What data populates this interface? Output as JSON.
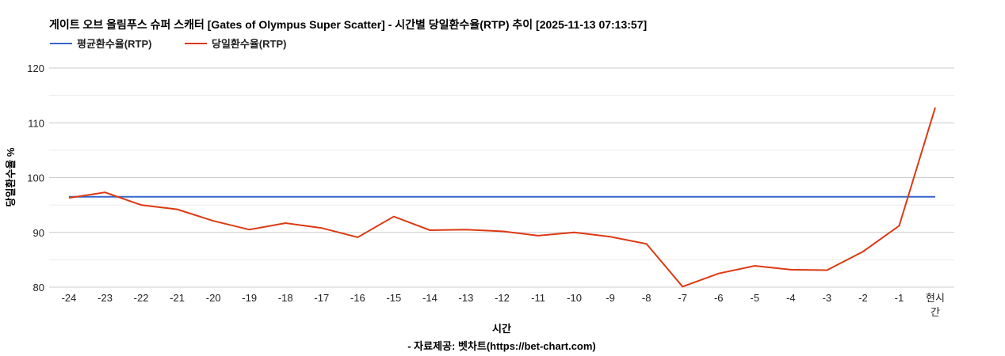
{
  "chart_data": {
    "type": "line",
    "title": "게이트 오브 올림푸스 슈퍼 스캐터 [Gates of Olympus Super Scatter] - 시간별 당일환수율(RTP) 추이 [2025-11-13 07:13:57]",
    "xlabel": "시간",
    "source": "- 자료제공: 벳차트(https://bet-chart.com)",
    "ylabel": "당일환수율 %",
    "ylim": [
      80,
      120
    ],
    "yticks": [
      80,
      90,
      100,
      110,
      120
    ],
    "grid": true,
    "legend_position": "top-left",
    "categories": [
      "-24",
      "-23",
      "-22",
      "-21",
      "-20",
      "-19",
      "-18",
      "-17",
      "-16",
      "-15",
      "-14",
      "-13",
      "-12",
      "-11",
      "-10",
      "-9",
      "-8",
      "-7",
      "-6",
      "-5",
      "-4",
      "-3",
      "-2",
      "-1",
      "현시간"
    ],
    "series": [
      {
        "name": "평균환수율(RTP)",
        "color": "#3366cc",
        "values": [
          96.5,
          96.5,
          96.5,
          96.5,
          96.5,
          96.5,
          96.5,
          96.5,
          96.5,
          96.5,
          96.5,
          96.5,
          96.5,
          96.5,
          96.5,
          96.5,
          96.5,
          96.5,
          96.5,
          96.5,
          96.5,
          96.5,
          96.5,
          96.5,
          96.5
        ]
      },
      {
        "name": "당일환수율(RTP)",
        "color": "#dc3912",
        "values": [
          96.3,
          97.3,
          95.0,
          94.2,
          92.1,
          90.5,
          91.7,
          90.8,
          89.1,
          92.9,
          90.4,
          90.5,
          90.2,
          89.4,
          90.0,
          89.2,
          87.9,
          80.1,
          82.5,
          83.9,
          83.2,
          83.1,
          86.5,
          91.2,
          112.8
        ]
      }
    ]
  }
}
